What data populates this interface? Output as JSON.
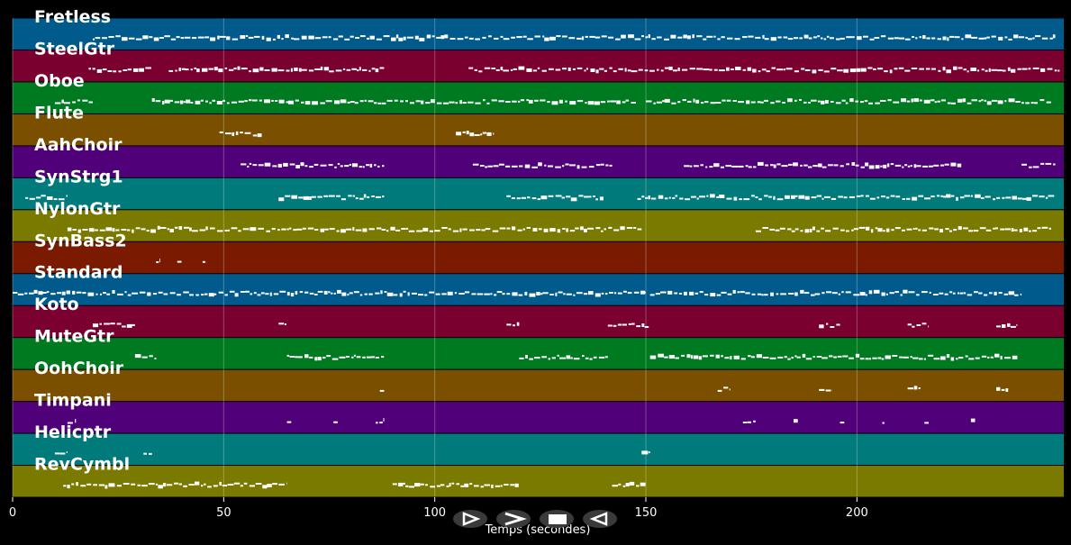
{
  "chart_data": {
    "type": "piano-roll",
    "xlabel": "Temps (secondes)",
    "xlim": [
      0,
      249
    ],
    "xticks": [
      0,
      50,
      100,
      150,
      200
    ],
    "grid": true,
    "tracks": [
      {
        "name": "Fretless",
        "color": "#005a8c",
        "segments": [
          [
            19,
            247
          ]
        ]
      },
      {
        "name": "SteelGtr",
        "color": "#7a0030",
        "segments": [
          [
            18,
            33
          ],
          [
            37,
            88
          ],
          [
            108,
            248
          ]
        ]
      },
      {
        "name": "Oboe",
        "color": "#007a20",
        "segments": [
          [
            10,
            19
          ],
          [
            33,
            148
          ],
          [
            150,
            246
          ]
        ]
      },
      {
        "name": "Flute",
        "color": "#7a5000",
        "segments": [
          [
            49,
            59
          ],
          [
            105,
            114
          ]
        ]
      },
      {
        "name": "AahChoir",
        "color": "#500078",
        "segments": [
          [
            54,
            88
          ],
          [
            109,
            142
          ],
          [
            159,
            225
          ],
          [
            239,
            247
          ]
        ]
      },
      {
        "name": "SynStrg1",
        "color": "#007a7a",
        "segments": [
          [
            3,
            13
          ],
          [
            63,
            88
          ],
          [
            117,
            140
          ],
          [
            148,
            247
          ]
        ]
      },
      {
        "name": "NylonGtr",
        "color": "#7a7a00",
        "segments": [
          [
            13,
            149
          ],
          [
            176,
            246
          ]
        ]
      },
      {
        "name": "SynBass2",
        "color": "#7a1a00",
        "segments": [
          [
            34,
            35
          ],
          [
            39,
            40
          ],
          [
            45,
            46
          ]
        ]
      },
      {
        "name": "Standard",
        "color": "#005a8c",
        "segments": [
          [
            0,
            150
          ],
          [
            151,
            239
          ]
        ]
      },
      {
        "name": "Koto",
        "color": "#7a0030",
        "segments": [
          [
            19,
            29
          ],
          [
            63,
            65
          ],
          [
            117,
            120
          ],
          [
            141,
            151
          ],
          [
            191,
            196
          ],
          [
            212,
            217
          ],
          [
            233,
            238
          ]
        ]
      },
      {
        "name": "MuteGtr",
        "color": "#007a20",
        "segments": [
          [
            29,
            34
          ],
          [
            65,
            88
          ],
          [
            120,
            141
          ],
          [
            151,
            238
          ]
        ]
      },
      {
        "name": "OohChoir",
        "color": "#7a5000",
        "segments": [
          [
            87,
            88
          ],
          [
            167,
            170
          ],
          [
            191,
            194
          ],
          [
            212,
            215
          ],
          [
            233,
            236
          ]
        ]
      },
      {
        "name": "Timpani",
        "color": "#500078",
        "segments": [
          [
            13,
            15
          ],
          [
            65,
            66
          ],
          [
            76,
            77
          ],
          [
            86,
            88
          ],
          [
            173,
            176
          ],
          [
            185,
            186
          ],
          [
            196,
            197
          ],
          [
            206,
            207
          ],
          [
            216,
            217
          ],
          [
            227,
            228
          ]
        ]
      },
      {
        "name": "Helicptr",
        "color": "#007a7a",
        "segments": [
          [
            10,
            13
          ],
          [
            31,
            33
          ],
          [
            149,
            151
          ]
        ]
      },
      {
        "name": "RevCymbl",
        "color": "#7a7a00",
        "segments": [
          [
            12,
            65
          ],
          [
            90,
            120
          ],
          [
            142,
            150
          ]
        ]
      }
    ]
  },
  "controls": [
    {
      "name": "play-button",
      "icon": "play-icon"
    },
    {
      "name": "fast-forward-button",
      "icon": "fast-forward-icon"
    },
    {
      "name": "stop-button",
      "icon": "stop-icon"
    },
    {
      "name": "rewind-button",
      "icon": "rewind-icon"
    }
  ]
}
